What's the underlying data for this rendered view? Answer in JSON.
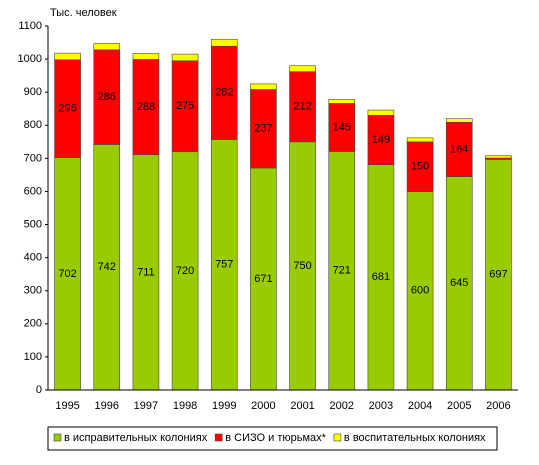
{
  "chart_data": {
    "type": "stacked-bar",
    "y_label": "Тыс. человек",
    "categories": [
      "1995",
      "1996",
      "1997",
      "1998",
      "1999",
      "2000",
      "2001",
      "2002",
      "2003",
      "2004",
      "2005",
      "2006"
    ],
    "series": [
      {
        "name": "в исправительных колониях",
        "color": "#99cc00",
        "values": [
          702,
          742,
          711,
          720,
          757,
          671,
          750,
          721,
          681,
          600,
          645,
          697
        ]
      },
      {
        "name": "в СИЗО и тюрьмах*",
        "color": "#ff0000",
        "values": [
          296,
          286,
          288,
          275,
          282,
          237,
          212,
          145,
          149,
          150,
          164,
          4
        ],
        "value_labels": [
          "296",
          "286",
          "288",
          "275",
          "282",
          "237",
          "212",
          "145",
          "149",
          "150",
          "164",
          null
        ]
      },
      {
        "name": "в воспитательных колониях",
        "color": "#ffff00",
        "values": [
          20,
          19,
          18,
          20,
          21,
          17,
          18,
          12,
          16,
          12,
          11,
          7
        ]
      }
    ],
    "ylim": [
      0,
      1100
    ],
    "yticks": [
      0,
      100,
      200,
      300,
      400,
      500,
      600,
      700,
      800,
      900,
      1000,
      1100
    ],
    "grid": false,
    "data_labels": [
      true,
      true,
      false
    ]
  }
}
